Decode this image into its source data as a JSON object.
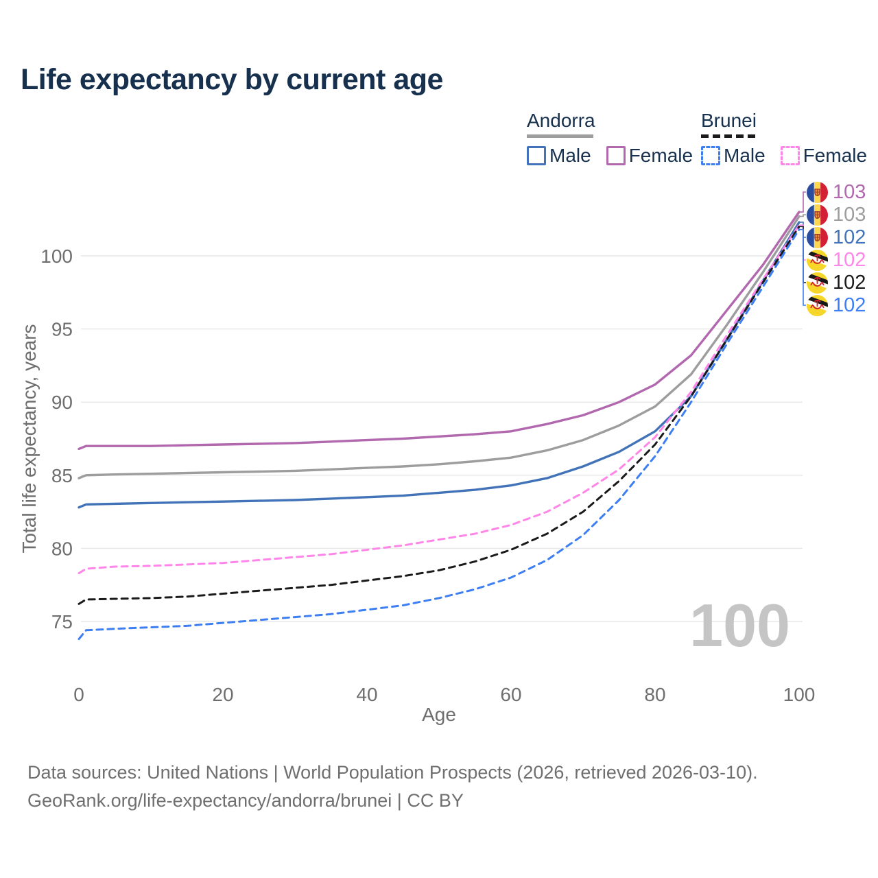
{
  "title": "Life expectancy by current age",
  "legend": {
    "andorra": {
      "title": "Andorra",
      "male": "Male",
      "female": "Female"
    },
    "brunei": {
      "title": "Brunei",
      "male": "Male",
      "female": "Female"
    }
  },
  "watermark": "100",
  "footer": {
    "line1": "Data sources: United Nations | World Population Prospects (2026, retrieved 2026-03-10).",
    "line2": "GeoRank.org/life-expectancy/andorra/brunei | CC BY"
  },
  "colors": {
    "title_navy": "#16304e",
    "axis_gray": "#6e6e6e",
    "grid": "#e7e7e7",
    "watermark_gray": "#c5c5c5",
    "footer_gray": "#6f6f6f",
    "andorra_female": "#b168ae",
    "andorra_both": "#9d9d9d",
    "andorra_male": "#4273b8",
    "brunei_female": "#ff85e8",
    "brunei_both": "#1a1a1a",
    "brunei_male": "#3d7ef2"
  },
  "chart_data": {
    "type": "line",
    "title": "Life expectancy by current age",
    "xlabel": "Age",
    "ylabel": "Total life expectancy, years",
    "xlim": [
      0,
      100
    ],
    "ylim": [
      73,
      104
    ],
    "xticks": [
      0,
      20,
      40,
      60,
      80,
      100
    ],
    "yticks": [
      75,
      80,
      85,
      90,
      95,
      100
    ],
    "grid": "horizontal-only",
    "legend_position": "top-right",
    "age_cursor": "100",
    "x": [
      0,
      1,
      5,
      10,
      15,
      20,
      25,
      30,
      35,
      40,
      45,
      50,
      55,
      60,
      65,
      70,
      75,
      80,
      85,
      90,
      95,
      100
    ],
    "series": [
      {
        "name": "Andorra Female",
        "country": "Andorra",
        "sex": "Female",
        "line_style": "solid",
        "color_key": "andorra_female",
        "flag": "andorra",
        "end_label": "103",
        "values": [
          86.8,
          87.0,
          87.0,
          87.0,
          87.05,
          87.1,
          87.15,
          87.2,
          87.3,
          87.4,
          87.5,
          87.65,
          87.8,
          88.0,
          88.5,
          89.1,
          90.0,
          91.2,
          93.2,
          96.3,
          99.4,
          103.0
        ]
      },
      {
        "name": "Andorra Both sexes",
        "country": "Andorra",
        "sex": "Both",
        "line_style": "solid",
        "color_key": "andorra_both",
        "flag": "andorra",
        "end_label": "103",
        "values": [
          84.8,
          85.0,
          85.05,
          85.1,
          85.15,
          85.2,
          85.25,
          85.3,
          85.4,
          85.5,
          85.6,
          85.75,
          85.95,
          86.2,
          86.7,
          87.4,
          88.4,
          89.7,
          91.9,
          95.3,
          98.9,
          102.7
        ]
      },
      {
        "name": "Andorra Male",
        "country": "Andorra",
        "sex": "Male",
        "line_style": "solid",
        "color_key": "andorra_male",
        "flag": "andorra",
        "end_label": "102",
        "values": [
          82.8,
          83.0,
          83.05,
          83.1,
          83.15,
          83.2,
          83.25,
          83.3,
          83.4,
          83.5,
          83.6,
          83.8,
          84.0,
          84.3,
          84.8,
          85.6,
          86.6,
          88.0,
          90.4,
          94.3,
          98.3,
          102.3
        ]
      },
      {
        "name": "Brunei Female",
        "country": "Brunei",
        "sex": "Female",
        "line_style": "dashed",
        "color_key": "brunei_female",
        "flag": "brunei",
        "end_label": "102",
        "values": [
          78.3,
          78.6,
          78.75,
          78.8,
          78.9,
          79.0,
          79.2,
          79.4,
          79.6,
          79.9,
          80.2,
          80.6,
          81.0,
          81.6,
          82.5,
          83.8,
          85.4,
          87.6,
          90.7,
          94.6,
          98.4,
          102.1
        ]
      },
      {
        "name": "Brunei Both sexes",
        "country": "Brunei",
        "sex": "Both",
        "line_style": "dashed",
        "color_key": "brunei_both",
        "flag": "brunei",
        "end_label": "102",
        "values": [
          76.2,
          76.5,
          76.55,
          76.6,
          76.7,
          76.9,
          77.1,
          77.3,
          77.5,
          77.8,
          78.1,
          78.5,
          79.1,
          79.9,
          81.0,
          82.5,
          84.6,
          87.1,
          90.4,
          94.3,
          98.2,
          102.0
        ]
      },
      {
        "name": "Brunei Male",
        "country": "Brunei",
        "sex": "Male",
        "line_style": "dashed",
        "color_key": "brunei_male",
        "flag": "brunei",
        "end_label": "102",
        "values": [
          73.8,
          74.4,
          74.5,
          74.6,
          74.7,
          74.9,
          75.1,
          75.3,
          75.5,
          75.8,
          76.1,
          76.6,
          77.2,
          78.0,
          79.2,
          80.9,
          83.3,
          86.3,
          90.0,
          94.0,
          97.9,
          101.8
        ]
      }
    ]
  }
}
